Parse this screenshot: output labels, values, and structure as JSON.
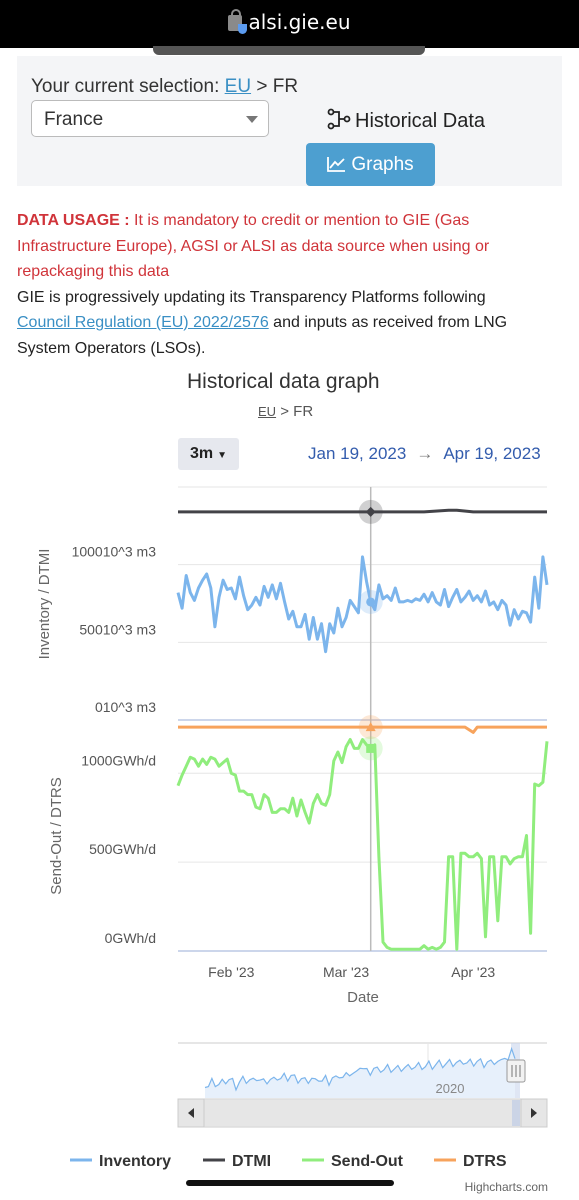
{
  "browser": {
    "url": "alsi.gie.eu"
  },
  "selection": {
    "prefix": "Your current selection:",
    "region_link": "EU",
    "separator": ">",
    "country_code": "FR"
  },
  "country_select": {
    "value": "France"
  },
  "buttons": {
    "historical": "Historical Data",
    "graphs": "Graphs"
  },
  "notice": {
    "usage_label": "DATA USAGE :",
    "usage_text": "It is mandatory to credit or mention to GIE (Gas Infrastructure Europe), AGSI or ALSI as data source when using or repackaging this data",
    "update_text_1": "GIE is progressively updating its Transparency Platforms following",
    "regulation_link": "Council Regulation (EU) 2022/2576",
    "update_text_2": "and inputs as received from LNG System Operators (LSOs)."
  },
  "colors": {
    "inventory": "#7cb5ec",
    "dtmi": "#434348",
    "sendout": "#90ed7d",
    "dtrs": "#f7a35c",
    "link": "#3a8fc4",
    "notice": "#d0343a",
    "button": "#4d9fd0"
  },
  "chart_data": {
    "type": "line",
    "title": "Historical data graph",
    "breadcrumb": {
      "region": "EU",
      "separator": ">",
      "country": "FR"
    },
    "range_button": "3m",
    "date_from": "Jan 19, 2023",
    "date_arrow": "→",
    "date_to": "Apr 19, 2023",
    "xlabel": "Date",
    "x_ticks": [
      {
        "label": "Feb '23",
        "date": "2023-02-01"
      },
      {
        "label": "Mar '23",
        "date": "2023-03-01"
      },
      {
        "label": "Apr '23",
        "date": "2023-04-01"
      }
    ],
    "x_range": [
      "2023-01-19",
      "2023-04-19"
    ],
    "panels": [
      {
        "ylabel": "Inventory / DTMI",
        "y_ticks": [
          "010^3 m3",
          "50010^3 m3",
          "100010^3 m3"
        ],
        "ylim": [
          0,
          1500
        ],
        "series": [
          {
            "name": "Inventory",
            "color": "#7cb5ec",
            "x": [
              "2023-01-19",
              "2023-01-20",
              "2023-01-21",
              "2023-01-22",
              "2023-01-23",
              "2023-01-24",
              "2023-01-25",
              "2023-01-26",
              "2023-01-27",
              "2023-01-28",
              "2023-01-29",
              "2023-01-30",
              "2023-01-31",
              "2023-02-01",
              "2023-02-02",
              "2023-02-03",
              "2023-02-04",
              "2023-02-05",
              "2023-02-06",
              "2023-02-07",
              "2023-02-08",
              "2023-02-09",
              "2023-02-10",
              "2023-02-11",
              "2023-02-12",
              "2023-02-13",
              "2023-02-14",
              "2023-02-15",
              "2023-02-16",
              "2023-02-17",
              "2023-02-18",
              "2023-02-19",
              "2023-02-20",
              "2023-02-21",
              "2023-02-22",
              "2023-02-23",
              "2023-02-24",
              "2023-02-25",
              "2023-02-26",
              "2023-02-27",
              "2023-02-28",
              "2023-03-01",
              "2023-03-02",
              "2023-03-03",
              "2023-03-04",
              "2023-03-05",
              "2023-03-06",
              "2023-03-07",
              "2023-03-08",
              "2023-03-09",
              "2023-03-10",
              "2023-03-11",
              "2023-03-12",
              "2023-03-13",
              "2023-03-14",
              "2023-03-15",
              "2023-03-16",
              "2023-03-17",
              "2023-03-18",
              "2023-03-19",
              "2023-03-20",
              "2023-03-21",
              "2023-03-22",
              "2023-03-23",
              "2023-03-24",
              "2023-03-25",
              "2023-03-26",
              "2023-03-27",
              "2023-03-28",
              "2023-03-29",
              "2023-03-30",
              "2023-03-31",
              "2023-04-01",
              "2023-04-02",
              "2023-04-03",
              "2023-04-04",
              "2023-04-05",
              "2023-04-06",
              "2023-04-07",
              "2023-04-08",
              "2023-04-09",
              "2023-04-10",
              "2023-04-11",
              "2023-04-12",
              "2023-04-13",
              "2023-04-14",
              "2023-04-15",
              "2023-04-16",
              "2023-04-17",
              "2023-04-18",
              "2023-04-19"
            ],
            "values": [
              820,
              720,
              930,
              820,
              770,
              850,
              900,
              940,
              850,
              600,
              790,
              900,
              840,
              850,
              780,
              920,
              800,
              710,
              740,
              790,
              740,
              860,
              790,
              870,
              780,
              880,
              760,
              650,
              700,
              600,
              600,
              680,
              520,
              660,
              520,
              620,
              440,
              620,
              560,
              720,
              600,
              660,
              770,
              730,
              690,
              1050,
              890,
              760,
              710,
              870,
              780,
              800,
              770,
              850,
              760,
              760,
              770,
              760,
              780,
              770,
              810,
              760,
              820,
              760,
              740,
              840,
              730,
              790,
              840,
              760,
              790,
              830,
              770,
              800,
              760,
              830,
              740,
              760,
              710,
              770,
              740,
              610,
              710,
              650,
              700,
              690,
              630,
              920,
              720,
              1050,
              870
            ]
          },
          {
            "name": "DTMI",
            "color": "#434348",
            "x": [
              "2023-01-19",
              "2023-03-20",
              "2023-03-26",
              "2023-03-28",
              "2023-04-01",
              "2023-04-19"
            ],
            "values": [
              1340,
              1340,
              1350,
              1350,
              1340,
              1340
            ]
          }
        ]
      },
      {
        "ylabel": "Send-Out / DTRS",
        "y_ticks": [
          "0GWh/d",
          "500GWh/d",
          "1000GWh/d"
        ],
        "ylim": [
          0,
          1300
        ],
        "series": [
          {
            "name": "Send-Out",
            "color": "#90ed7d",
            "x": [
              "2023-01-19",
              "2023-01-20",
              "2023-01-21",
              "2023-01-22",
              "2023-01-23",
              "2023-01-24",
              "2023-01-25",
              "2023-01-26",
              "2023-01-27",
              "2023-01-28",
              "2023-01-29",
              "2023-01-30",
              "2023-01-31",
              "2023-02-01",
              "2023-02-02",
              "2023-02-03",
              "2023-02-04",
              "2023-02-05",
              "2023-02-06",
              "2023-02-07",
              "2023-02-08",
              "2023-02-09",
              "2023-02-10",
              "2023-02-11",
              "2023-02-12",
              "2023-02-13",
              "2023-02-14",
              "2023-02-15",
              "2023-02-16",
              "2023-02-17",
              "2023-02-18",
              "2023-02-19",
              "2023-02-20",
              "2023-02-21",
              "2023-02-22",
              "2023-02-23",
              "2023-02-24",
              "2023-02-25",
              "2023-02-26",
              "2023-02-27",
              "2023-02-28",
              "2023-03-01",
              "2023-03-02",
              "2023-03-03",
              "2023-03-04",
              "2023-03-05",
              "2023-03-06",
              "2023-03-07",
              "2023-03-08",
              "2023-03-09",
              "2023-03-10",
              "2023-03-11",
              "2023-03-12",
              "2023-03-13",
              "2023-03-14",
              "2023-03-15",
              "2023-03-16",
              "2023-03-17",
              "2023-03-18",
              "2023-03-19",
              "2023-03-20",
              "2023-03-21",
              "2023-03-22",
              "2023-03-23",
              "2023-03-24",
              "2023-03-25",
              "2023-03-26",
              "2023-03-27",
              "2023-03-28",
              "2023-03-29",
              "2023-03-30",
              "2023-03-31",
              "2023-04-01",
              "2023-04-02",
              "2023-04-03",
              "2023-04-04",
              "2023-04-05",
              "2023-04-06",
              "2023-04-07",
              "2023-04-08",
              "2023-04-09",
              "2023-04-10",
              "2023-04-11",
              "2023-04-12",
              "2023-04-13",
              "2023-04-14",
              "2023-04-15",
              "2023-04-16",
              "2023-04-17",
              "2023-04-18",
              "2023-04-19"
            ],
            "values": [
              930,
              990,
              1040,
              1090,
              1080,
              1040,
              1080,
              1050,
              1090,
              1080,
              1040,
              1060,
              1080,
              1000,
              990,
              900,
              900,
              880,
              880,
              810,
              800,
              880,
              860,
              780,
              780,
              800,
              800,
              780,
              860,
              760,
              850,
              780,
              720,
              830,
              880,
              830,
              820,
              880,
              1070,
              1120,
              1060,
              1150,
              1190,
              1140,
              1140,
              1190,
              1160,
              1140,
              1160,
              530,
              50,
              20,
              10,
              10,
              10,
              10,
              10,
              10,
              10,
              10,
              30,
              10,
              20,
              10,
              20,
              50,
              530,
              530,
              10,
              550,
              550,
              530,
              530,
              550,
              520,
              80,
              530,
              530,
              170,
              530,
              530,
              490,
              520,
              530,
              530,
              650,
              100,
              940,
              930,
              950,
              1180
            ]
          },
          {
            "name": "DTRS",
            "color": "#f7a35c",
            "x": [
              "2023-01-19",
              "2023-03-30",
              "2023-04-01",
              "2023-04-02",
              "2023-04-19"
            ],
            "values": [
              1260,
              1260,
              1230,
              1260,
              1260
            ]
          }
        ]
      }
    ],
    "crosshair_date": "2023-03-07",
    "navigator": {
      "tick_label": "2020"
    },
    "credits": "Highcharts.com"
  }
}
